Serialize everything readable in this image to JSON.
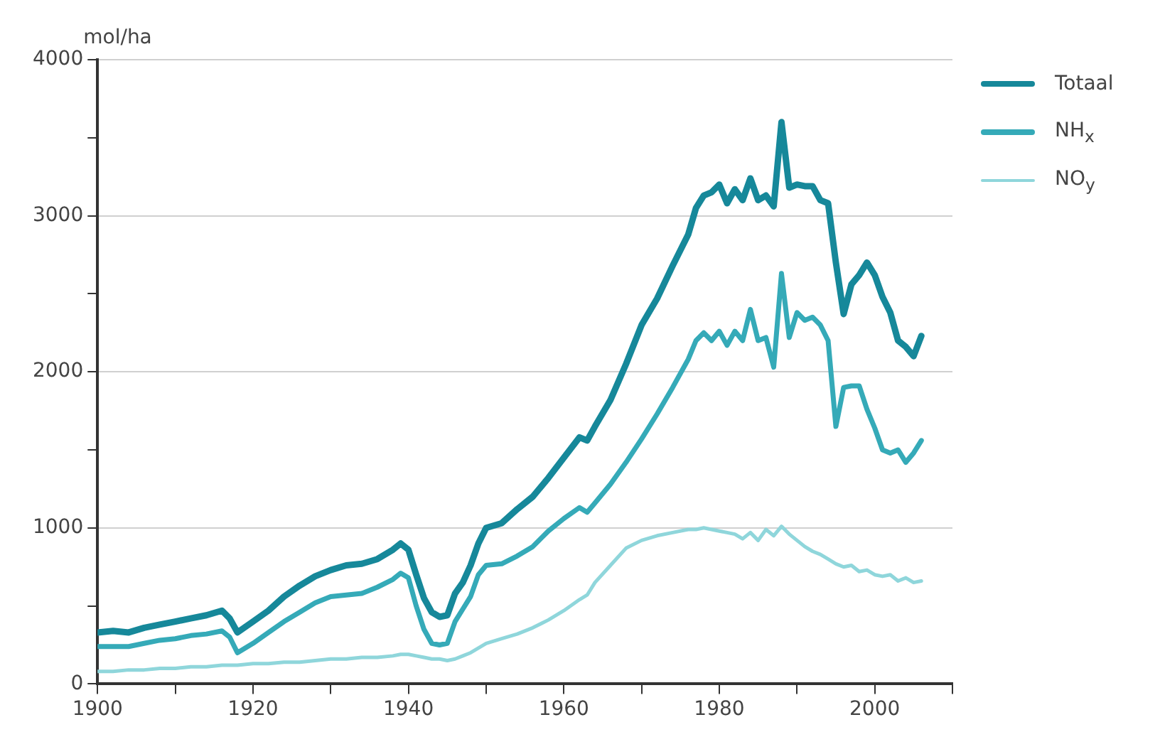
{
  "chart_data": {
    "type": "line",
    "ylabel": "mol/ha",
    "x": [
      1900,
      1902,
      1904,
      1906,
      1908,
      1910,
      1912,
      1914,
      1916,
      1917,
      1918,
      1920,
      1922,
      1924,
      1926,
      1928,
      1930,
      1932,
      1934,
      1936,
      1938,
      1939,
      1940,
      1941,
      1942,
      1943,
      1944,
      1945,
      1946,
      1947,
      1948,
      1949,
      1950,
      1952,
      1954,
      1956,
      1958,
      1960,
      1962,
      1963,
      1964,
      1966,
      1968,
      1970,
      1972,
      1974,
      1976,
      1977,
      1978,
      1979,
      1980,
      1981,
      1982,
      1983,
      1984,
      1985,
      1986,
      1987,
      1988,
      1989,
      1990,
      1991,
      1992,
      1993,
      1994,
      1995,
      1996,
      1997,
      1998,
      1999,
      2000,
      2001,
      2002,
      2003,
      2004,
      2005,
      2006
    ],
    "series": [
      {
        "name": "Totaal",
        "color": "#16889a",
        "values": [
          330,
          340,
          330,
          360,
          380,
          400,
          420,
          440,
          470,
          420,
          330,
          400,
          470,
          560,
          630,
          690,
          730,
          760,
          770,
          800,
          860,
          900,
          860,
          700,
          550,
          460,
          430,
          440,
          580,
          650,
          760,
          900,
          1000,
          1030,
          1120,
          1200,
          1320,
          1450,
          1580,
          1560,
          1650,
          1820,
          2050,
          2300,
          2470,
          2680,
          2880,
          3050,
          3130,
          3150,
          3200,
          3080,
          3170,
          3100,
          3240,
          3100,
          3130,
          3060,
          3600,
          3180,
          3200,
          3190,
          3190,
          3100,
          3080,
          2700,
          2370,
          2560,
          2620,
          2700,
          2620,
          2480,
          2380,
          2200,
          2160,
          2100,
          2230
        ]
      },
      {
        "name": "NH$_{x}$",
        "color": "#35aab8",
        "values": [
          240,
          240,
          240,
          260,
          280,
          290,
          310,
          320,
          340,
          300,
          200,
          260,
          330,
          400,
          460,
          520,
          560,
          570,
          580,
          620,
          670,
          710,
          680,
          500,
          350,
          260,
          250,
          260,
          400,
          480,
          560,
          700,
          760,
          770,
          820,
          880,
          980,
          1060,
          1130,
          1100,
          1160,
          1280,
          1420,
          1570,
          1730,
          1900,
          2080,
          2200,
          2250,
          2200,
          2260,
          2170,
          2260,
          2200,
          2400,
          2200,
          2220,
          2030,
          2630,
          2220,
          2380,
          2330,
          2350,
          2300,
          2200,
          1650,
          1900,
          1910,
          1910,
          1760,
          1640,
          1500,
          1480,
          1500,
          1420,
          1480,
          1560
        ]
      },
      {
        "name": "NO$_{y}$",
        "color": "#8fd6db",
        "values": [
          80,
          80,
          90,
          90,
          100,
          100,
          110,
          110,
          120,
          120,
          120,
          130,
          130,
          140,
          140,
          150,
          160,
          160,
          170,
          170,
          180,
          190,
          190,
          180,
          170,
          160,
          160,
          150,
          160,
          180,
          200,
          230,
          260,
          290,
          320,
          360,
          410,
          470,
          540,
          570,
          650,
          760,
          870,
          920,
          950,
          970,
          990,
          990,
          1000,
          990,
          980,
          970,
          960,
          930,
          970,
          920,
          990,
          950,
          1010,
          960,
          920,
          880,
          850,
          830,
          800,
          770,
          750,
          760,
          720,
          730,
          700,
          690,
          700,
          660,
          680,
          650,
          660
        ]
      }
    ],
    "xlim": [
      1900,
      2010
    ],
    "xticks": [
      1900,
      {
        "value": 1910,
        "label": null
      },
      1920,
      {
        "value": 1930,
        "label": null
      },
      1940,
      {
        "value": 1950,
        "label": null
      },
      1960,
      {
        "value": 1970,
        "label": null
      },
      1980,
      {
        "value": 1990,
        "label": null
      },
      2000,
      {
        "value": 2010,
        "label": null
      }
    ],
    "ylim": [
      0,
      4000
    ],
    "yticks": [
      0,
      {
        "value": 500,
        "label": null
      },
      1000,
      {
        "value": 1500,
        "label": null
      },
      2000,
      {
        "value": 2500,
        "label": null
      },
      3000,
      {
        "value": 3500,
        "label": null
      },
      4000
    ],
    "grid": "y",
    "legend": "right",
    "marker": "none",
    "line_style": "solid"
  }
}
